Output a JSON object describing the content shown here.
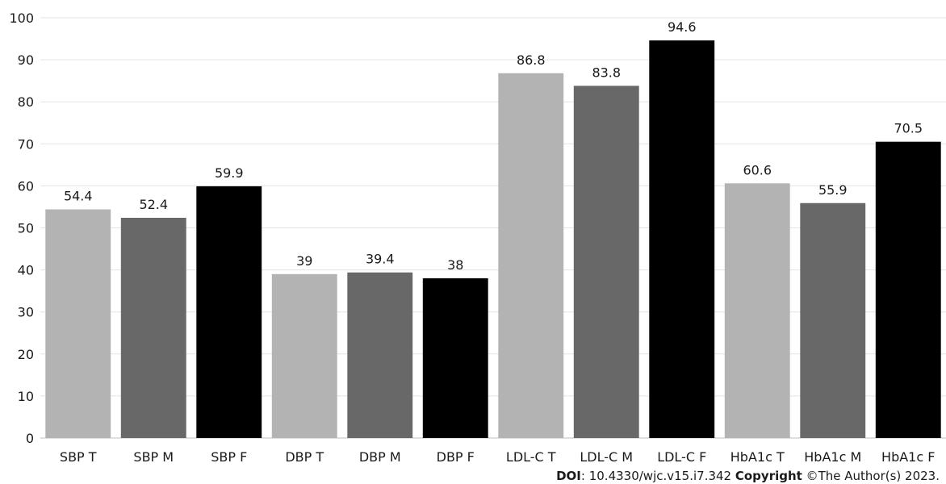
{
  "chart_data": {
    "type": "bar",
    "categories": [
      "SBP T",
      "SBP M",
      "SBP F",
      "DBP T",
      "DBP M",
      "DBP F",
      "LDL-C T",
      "LDL-C M",
      "LDL-C F",
      "HbA1c T",
      "HbA1c M",
      "HbA1c F"
    ],
    "values": [
      54.4,
      52.4,
      59.9,
      39,
      39.4,
      38,
      86.8,
      83.8,
      94.6,
      60.6,
      55.9,
      70.5
    ],
    "bar_colors": [
      "#b3b3b3",
      "#686868",
      "#000000",
      "#b3b3b3",
      "#686868",
      "#000000",
      "#b3b3b3",
      "#686868",
      "#000000",
      "#b3b3b3",
      "#686868",
      "#000000"
    ],
    "title": "",
    "xlabel": "",
    "ylabel": "",
    "ylim": [
      0,
      100
    ],
    "yticks": [
      0,
      10,
      20,
      30,
      40,
      50,
      60,
      70,
      80,
      90,
      100
    ],
    "grid": true,
    "data_labels": true
  },
  "footer": {
    "doi_label": "DOI",
    "doi_text": ": 10.4330/wjc.v15.i7.342 ",
    "copyright_label": "Copyright",
    "copyright_text": " ©The Author(s) 2023."
  }
}
